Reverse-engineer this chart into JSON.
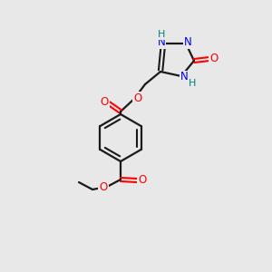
{
  "background_color": "#e8e8e8",
  "bond_color": "#1a1a1a",
  "atom_colors": {
    "O": "#ff0000",
    "N": "#0000ee",
    "H": "#008080",
    "C": "#1a1a1a"
  },
  "figsize": [
    3.0,
    3.0
  ],
  "dpi": 100
}
